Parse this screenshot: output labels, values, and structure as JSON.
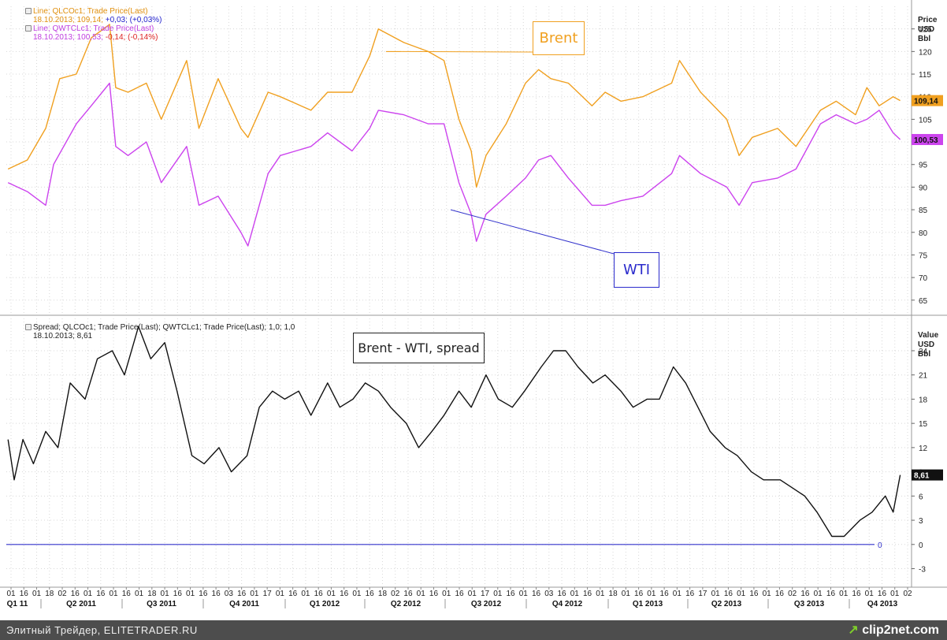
{
  "footer": {
    "text": "Элитный Трейдер, ELITETRADER.RU",
    "brand": "clip2net.com",
    "brand_mark": "↗"
  },
  "top_panel": {
    "axis_title": [
      "Price",
      "USD",
      "Bbl"
    ],
    "legend": [
      {
        "line": "Line; QLCOc1; Trade Price(Last)",
        "date": "18.10.2013;",
        "value": "109,14;",
        "change": "+0,03;",
        "pct": "(+0,03%)"
      },
      {
        "line": "Line; QWTCLc1; Trade Price(Last)",
        "date": "18.10.2013;",
        "value": "100,53;",
        "change": "-0,14;",
        "pct": "(-0,14%)"
      }
    ],
    "annotations": {
      "brent": "Brent",
      "wti": "WTI"
    },
    "last_labels": {
      "brent": "109,14",
      "wti": "100,53"
    }
  },
  "bottom_panel": {
    "axis_title": [
      "Value",
      "USD",
      "Bbl"
    ],
    "legend_line": "Spread; QLCOc1; Trade Price(Last); QWTCLc1; Trade Price(Last);  1,0; 1,0",
    "legend_date": "18.10.2013; 8,61",
    "annotation": "Brent - WTI, spread",
    "last_label": "8,61",
    "zero_label": "0"
  },
  "colors": {
    "brent": "#f0a020",
    "wti": "#cc44ee",
    "spread": "#111111",
    "zero_line": "#3333cc",
    "grid": "#d8d8d8"
  },
  "chart_data": [
    {
      "type": "line",
      "yaxis_ticks": [
        "65",
        "70",
        "75",
        "80",
        "85",
        "90",
        "95",
        "100",
        "105",
        "110",
        "115",
        "120",
        "125"
      ],
      "ylim": [
        62,
        130
      ],
      "xlim": [
        "2011-01-01",
        "2013-10-31"
      ],
      "series": [
        {
          "name": "Line; QLCOc1; Trade Price(Last)",
          "x": [
            "2011-01-03",
            "2011-01-25",
            "2011-02-15",
            "2011-03-03",
            "2011-03-22",
            "2011-04-08",
            "2011-04-29",
            "2011-05-06",
            "2011-05-20",
            "2011-06-10",
            "2011-06-27",
            "2011-07-26",
            "2011-08-09",
            "2011-08-31",
            "2011-09-26",
            "2011-10-04",
            "2011-10-27",
            "2011-11-10",
            "2011-12-15",
            "2012-01-03",
            "2012-01-31",
            "2012-02-20",
            "2012-03-01",
            "2012-03-30",
            "2012-04-27",
            "2012-05-15",
            "2012-06-01",
            "2012-06-15",
            "2012-06-21",
            "2012-07-02",
            "2012-07-25",
            "2012-08-16",
            "2012-08-31",
            "2012-09-14",
            "2012-10-04",
            "2012-10-31",
            "2012-11-15",
            "2012-12-03",
            "2012-12-28",
            "2013-01-30",
            "2013-02-08",
            "2013-03-04",
            "2013-04-03",
            "2013-04-17",
            "2013-05-02",
            "2013-05-31",
            "2013-06-21",
            "2013-07-19",
            "2013-08-06",
            "2013-08-28",
            "2013-09-10",
            "2013-09-24",
            "2013-10-10",
            "2013-10-18"
          ],
          "values": [
            94,
            96,
            103,
            114,
            115,
            123,
            126,
            112,
            111,
            113,
            105,
            118,
            103,
            114,
            103,
            101,
            111,
            110,
            107,
            111,
            111,
            119,
            125,
            122,
            120,
            118,
            105,
            98,
            90,
            97,
            104,
            113,
            116,
            114,
            113,
            108,
            111,
            109,
            110,
            113,
            118,
            111,
            105,
            97,
            101,
            103,
            99,
            107,
            109,
            106,
            112,
            108,
            110,
            109.14
          ]
        },
        {
          "name": "Line; QWTCLc1; Trade Price(Last)",
          "x": [
            "2011-01-03",
            "2011-01-25",
            "2011-02-15",
            "2011-02-24",
            "2011-03-22",
            "2011-04-08",
            "2011-04-29",
            "2011-05-06",
            "2011-05-20",
            "2011-06-10",
            "2011-06-27",
            "2011-07-26",
            "2011-08-09",
            "2011-08-31",
            "2011-09-26",
            "2011-10-04",
            "2011-10-27",
            "2011-11-10",
            "2011-12-15",
            "2012-01-03",
            "2012-01-31",
            "2012-02-20",
            "2012-03-01",
            "2012-03-30",
            "2012-04-27",
            "2012-05-15",
            "2012-06-01",
            "2012-06-15",
            "2012-06-21",
            "2012-07-02",
            "2012-07-25",
            "2012-08-16",
            "2012-08-31",
            "2012-09-14",
            "2012-10-04",
            "2012-10-31",
            "2012-11-15",
            "2012-12-03",
            "2012-12-28",
            "2013-01-30",
            "2013-02-08",
            "2013-03-04",
            "2013-04-03",
            "2013-04-17",
            "2013-05-02",
            "2013-05-31",
            "2013-06-21",
            "2013-07-19",
            "2013-08-06",
            "2013-08-28",
            "2013-09-10",
            "2013-09-24",
            "2013-10-10",
            "2013-10-18"
          ],
          "values": [
            91,
            89,
            86,
            95,
            104,
            108,
            113,
            99,
            97,
            100,
            91,
            99,
            86,
            88,
            80,
            77,
            93,
            97,
            99,
            102,
            98,
            103,
            107,
            106,
            104,
            104,
            91,
            84,
            78,
            84,
            88,
            92,
            96,
            97,
            92,
            86,
            86,
            87,
            88,
            93,
            97,
            93,
            90,
            86,
            91,
            92,
            94,
            104,
            106,
            104,
            105,
            107,
            102,
            100.53
          ]
        }
      ]
    },
    {
      "type": "line",
      "yaxis_ticks": [
        "-3",
        "0",
        "3",
        "6",
        "9",
        "12",
        "15",
        "18",
        "21",
        "24"
      ],
      "ylim": [
        -5,
        28
      ],
      "xlim": [
        "2011-01-01",
        "2013-10-31"
      ],
      "series": [
        {
          "name": "Spread; QLCOc1; Trade Price(Last); QWTCLc1; Trade Price(Last);  1,0; 1,0",
          "x": [
            "2011-01-03",
            "2011-01-10",
            "2011-01-20",
            "2011-02-01",
            "2011-02-15",
            "2011-03-01",
            "2011-03-15",
            "2011-04-01",
            "2011-04-15",
            "2011-05-02",
            "2011-05-16",
            "2011-06-01",
            "2011-06-15",
            "2011-07-01",
            "2011-07-15",
            "2011-08-01",
            "2011-08-15",
            "2011-09-01",
            "2011-09-15",
            "2011-10-03",
            "2011-10-17",
            "2011-11-01",
            "2011-11-15",
            "2011-12-01",
            "2011-12-15",
            "2012-01-03",
            "2012-01-17",
            "2012-02-01",
            "2012-02-15",
            "2012-03-01",
            "2012-03-15",
            "2012-04-02",
            "2012-04-16",
            "2012-05-01",
            "2012-05-15",
            "2012-06-01",
            "2012-06-15",
            "2012-07-02",
            "2012-07-16",
            "2012-08-01",
            "2012-08-15",
            "2012-09-03",
            "2012-09-17",
            "2012-10-01",
            "2012-10-15",
            "2012-11-01",
            "2012-11-15",
            "2012-12-03",
            "2012-12-17",
            "2013-01-02",
            "2013-01-16",
            "2013-02-01",
            "2013-02-15",
            "2013-03-01",
            "2013-03-15",
            "2013-04-01",
            "2013-04-15",
            "2013-05-01",
            "2013-05-15",
            "2013-06-03",
            "2013-06-17",
            "2013-07-01",
            "2013-07-15",
            "2013-08-01",
            "2013-08-15",
            "2013-09-02",
            "2013-09-16",
            "2013-10-01",
            "2013-10-10",
            "2013-10-18"
          ],
          "values": [
            13,
            8,
            13,
            10,
            14,
            12,
            20,
            18,
            23,
            24,
            21,
            27,
            23,
            25,
            19,
            11,
            10,
            12,
            9,
            11,
            17,
            19,
            18,
            19,
            16,
            20,
            17,
            18,
            20,
            19,
            17,
            15,
            12,
            14,
            16,
            19,
            17,
            21,
            18,
            17,
            19,
            22,
            24,
            24,
            22,
            20,
            21,
            19,
            17,
            18,
            18,
            22,
            20,
            17,
            14,
            12,
            11,
            9,
            8,
            8,
            7,
            6,
            4,
            1,
            1,
            3,
            4,
            6,
            4,
            8.61
          ]
        }
      ]
    }
  ],
  "xaxis": {
    "day_ticks": [
      "01",
      "16",
      "01",
      "18",
      "02",
      "16",
      "01",
      "16",
      "01",
      "16",
      "01",
      "18",
      "01",
      "16",
      "01",
      "16",
      "16",
      "03",
      "16",
      "01",
      "17",
      "01",
      "16",
      "01",
      "16",
      "01",
      "16",
      "01",
      "16",
      "18",
      "02",
      "16",
      "01",
      "16",
      "01",
      "16",
      "01",
      "17",
      "01",
      "16",
      "01",
      "16",
      "03",
      "16",
      "01",
      "16",
      "01",
      "18",
      "01",
      "16",
      "01",
      "16",
      "01",
      "16",
      "17",
      "01",
      "16",
      "01",
      "16",
      "01",
      "16",
      "02",
      "16",
      "01",
      "16",
      "01",
      "16",
      "01",
      "16",
      "01",
      "02"
    ],
    "quarters": [
      "Q1 11",
      "Q2 2011",
      "Q3 2011",
      "Q4 2011",
      "Q1 2012",
      "Q2 2012",
      "Q3 2012",
      "Q4 2012",
      "Q1 2013",
      "Q2 2013",
      "Q3 2013",
      "Q4 2013"
    ]
  }
}
